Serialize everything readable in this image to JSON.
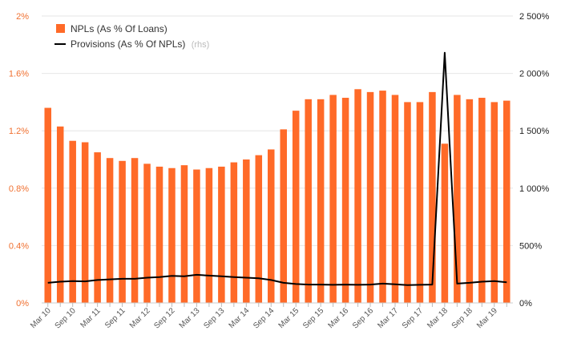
{
  "chart_data": {
    "type": "bar",
    "categories": [
      "Mar 10",
      "Jun 10",
      "Sep 10",
      "Dec 10",
      "Mar 11",
      "Jun 11",
      "Sep 11",
      "Dec 11",
      "Mar 12",
      "Jun 12",
      "Sep 12",
      "Dec 12",
      "Mar 13",
      "Jun 13",
      "Sep 13",
      "Dec 13",
      "Mar 14",
      "Jun 14",
      "Sep 14",
      "Dec 14",
      "Mar 15",
      "Jun 15",
      "Sep 15",
      "Dec 15",
      "Mar 16",
      "Jun 16",
      "Sep 16",
      "Dec 16",
      "Mar 17",
      "Jun 17",
      "Sep 17",
      "Dec 17",
      "Mar 18",
      "Jun 18",
      "Sep 18",
      "Dec 18",
      "Mar 19",
      "Jun 19"
    ],
    "x_tick_labels": [
      "Mar 10",
      "Sep 10",
      "Mar 11",
      "Sep 11",
      "Mar 12",
      "Sep 12",
      "Mar 13",
      "Sep 13",
      "Mar 14",
      "Sep 14",
      "Mar 15",
      "Sep 15",
      "Mar 16",
      "Sep 16",
      "Mar 17",
      "Sep 17",
      "Mar 18",
      "Sep 18",
      "Mar 19"
    ],
    "series": [
      {
        "name": "NPLs (As % Of Loans)",
        "type": "bar",
        "axis": "left",
        "values": [
          1.36,
          1.23,
          1.13,
          1.12,
          1.05,
          1.01,
          0.99,
          1.01,
          0.97,
          0.95,
          0.94,
          0.96,
          0.93,
          0.94,
          0.95,
          0.98,
          1.0,
          1.03,
          1.07,
          1.21,
          1.34,
          1.42,
          1.42,
          1.45,
          1.43,
          1.49,
          1.47,
          1.48,
          1.45,
          1.4,
          1.4,
          1.47,
          1.11,
          1.45,
          1.42,
          1.43,
          1.4,
          1.41
        ]
      },
      {
        "name": "Provisions (As % Of NPLs)",
        "type": "line",
        "axis": "right",
        "values": [
          175,
          185,
          190,
          188,
          200,
          205,
          210,
          210,
          220,
          225,
          235,
          232,
          245,
          238,
          232,
          225,
          220,
          215,
          200,
          175,
          165,
          160,
          160,
          158,
          160,
          158,
          160,
          168,
          162,
          155,
          158,
          160,
          2180,
          168,
          175,
          185,
          190,
          180
        ]
      }
    ],
    "legend": {
      "items": [
        {
          "label": "NPLs (As % Of Loans)",
          "note": ""
        },
        {
          "label": "Provisions (As % Of NPLs)",
          "note": "(rhs)"
        }
      ],
      "position": "top-left"
    },
    "left_axis": {
      "min": 0,
      "max": 2,
      "ticks": [
        "0%",
        "0.4%",
        "0.8%",
        "1.2%",
        "1.6%",
        "2%"
      ],
      "tick_values": [
        0,
        0.4,
        0.8,
        1.2,
        1.6,
        2.0
      ]
    },
    "right_axis": {
      "min": 0,
      "max": 2500,
      "ticks": [
        "0%",
        "500%",
        "1 000%",
        "1 500%",
        "2 000%",
        "2 500%"
      ],
      "tick_values": [
        0,
        500,
        1000,
        1500,
        2000,
        2500
      ]
    },
    "grid": true,
    "colors": {
      "bars": "#ff6a28",
      "line": "#000000",
      "left_ticks": "#f07030",
      "grid": "#e6e6e6"
    }
  }
}
